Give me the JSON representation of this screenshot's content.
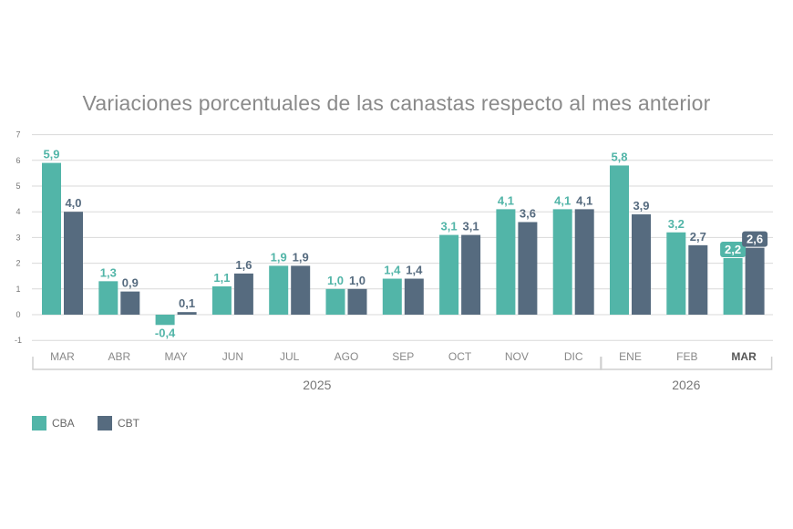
{
  "chart_data": {
    "type": "bar",
    "title": "Variaciones porcentuales de las canastas respecto al mes anterior",
    "categories": [
      "MAR",
      "ABR",
      "MAY",
      "JUN",
      "JUL",
      "AGO",
      "SEP",
      "OCT",
      "NOV",
      "DIC",
      "ENE",
      "FEB",
      "MAR"
    ],
    "highlight_category_index": 12,
    "groups": [
      {
        "label": "2025",
        "from": 0,
        "to": 9
      },
      {
        "label": "2026",
        "from": 10,
        "to": 12
      }
    ],
    "series": [
      {
        "name": "CBA",
        "color": "#52b5a8",
        "values": [
          5.9,
          1.3,
          -0.4,
          1.1,
          1.9,
          1.0,
          1.4,
          3.1,
          4.1,
          4.1,
          5.8,
          3.2,
          2.2
        ],
        "labels": [
          "5,9",
          "1,3",
          "-0,4",
          "1,1",
          "1,9",
          "1,0",
          "1,4",
          "3,1",
          "4,1",
          "4,1",
          "5,8",
          "3,2",
          "2,2"
        ]
      },
      {
        "name": "CBT",
        "color": "#566b7f",
        "values": [
          4.0,
          0.9,
          0.1,
          1.6,
          1.9,
          1.0,
          1.4,
          3.1,
          3.6,
          4.1,
          3.9,
          2.7,
          2.6
        ],
        "labels": [
          "4,0",
          "0,9",
          "0,1",
          "1,6",
          "1,9",
          "1,0",
          "1,4",
          "3,1",
          "3,6",
          "4,1",
          "3,9",
          "2,7",
          "2,6"
        ]
      }
    ],
    "yticks": [
      -1,
      0,
      1,
      2,
      3,
      4,
      5,
      6,
      7
    ],
    "ylim": [
      -1,
      7
    ],
    "grid": true,
    "legend_position": "bottom-left"
  }
}
